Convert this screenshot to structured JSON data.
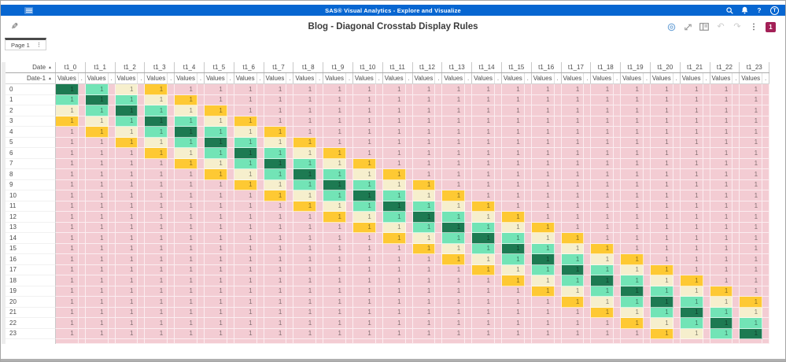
{
  "colors": {
    "brand-blue": "#0766d1",
    "badge-color": "#a32057"
  },
  "app_bar": {
    "title": "SAS® Visual Analytics - Explore and Visualize",
    "avatar_initial": "T"
  },
  "toolbar": {
    "title": "Blog - Diagonal Crosstab Display Rules",
    "badge_count": "1"
  },
  "tabs": [
    {
      "label": "Page 1"
    }
  ],
  "crosstab": {
    "column_dimension": "Date",
    "row_dimension": "Date-1",
    "sort_indicator": "▲",
    "measure_label": "Values",
    "spacer_label": ".",
    "columns": [
      "t1_0",
      "t1_1",
      "t1_2",
      "t1_3",
      "t1_4",
      "t1_5",
      "t1_6",
      "t1_7",
      "t1_8",
      "t1_9",
      "t1_10",
      "t1_11",
      "t1_12",
      "t1_13",
      "t1_14",
      "t1_15",
      "t1_16",
      "t1_17",
      "t1_18",
      "t1_19",
      "t1_20",
      "t1_21",
      "t1_22",
      "t1_23"
    ],
    "rows": [
      "0",
      "1",
      "2",
      "3",
      "4",
      "5",
      "6",
      "7",
      "8",
      "9",
      "10",
      "11",
      "12",
      "13",
      "14",
      "15",
      "16",
      "17",
      "18",
      "19",
      "20",
      "21",
      "22",
      "23"
    ],
    "cell_value": "1",
    "display_rules": {
      "by_diagonal_offset": {
        "0": "#1d7a52",
        "1": "#72e4b6",
        "2": "#f6efcd",
        "3": "#fec933"
      },
      "default": "#f3ccd3"
    }
  }
}
